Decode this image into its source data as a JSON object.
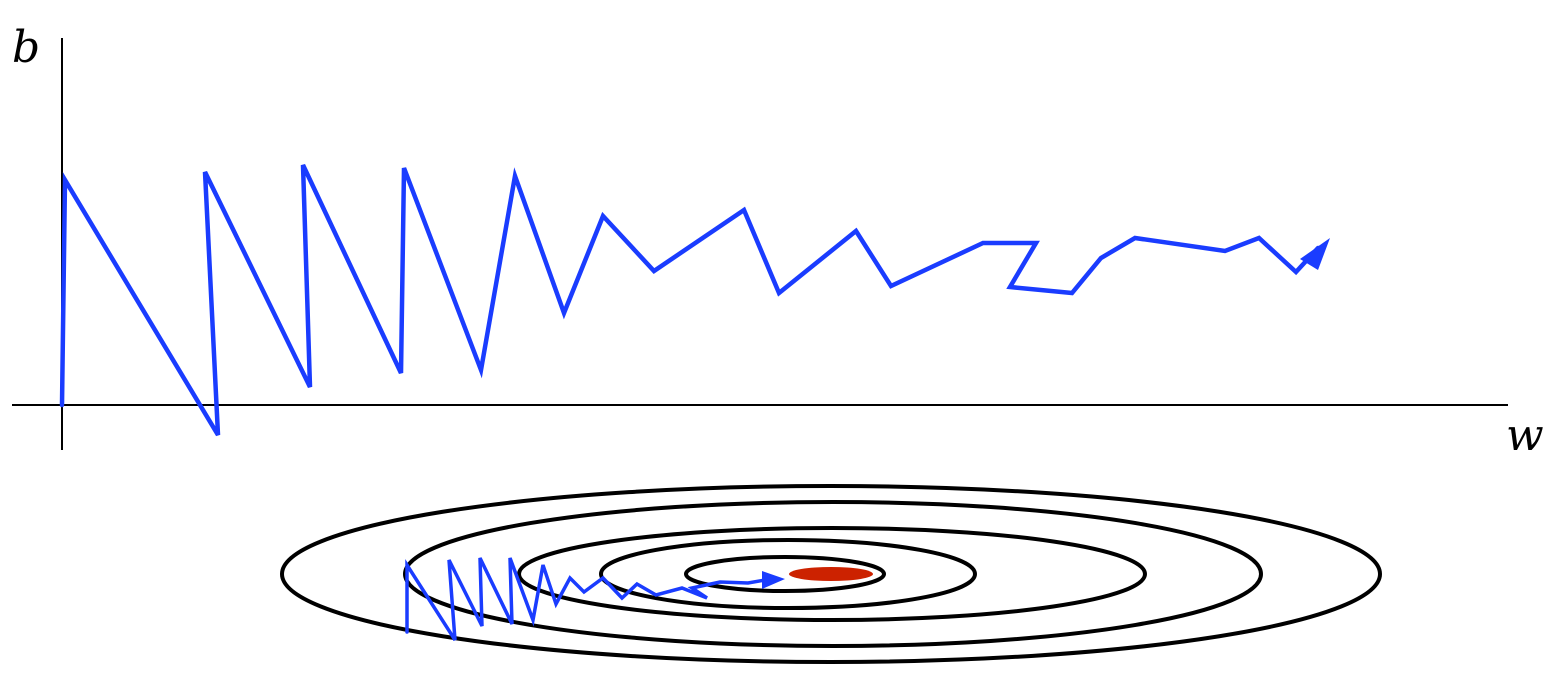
{
  "diagram": {
    "axes": {
      "x_label": "w",
      "y_label": "b"
    },
    "colors": {
      "axis": "#000000",
      "path": "#1a3cff",
      "contour": "#000000",
      "minimum": "#cc2200",
      "background": "#ffffff"
    },
    "contours": {
      "count": 5
    }
  }
}
